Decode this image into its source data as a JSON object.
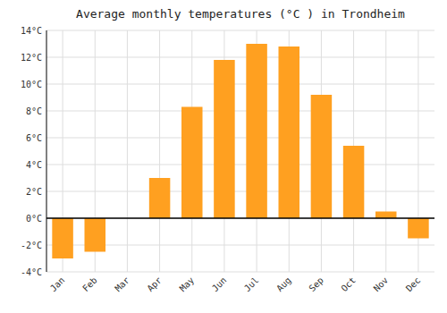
{
  "chart_data": {
    "type": "bar",
    "title": "Average monthly temperatures (°C ) in Trondheim",
    "categories": [
      "Jan",
      "Feb",
      "Mar",
      "Apr",
      "May",
      "Jun",
      "Jul",
      "Aug",
      "Sep",
      "Oct",
      "Nov",
      "Dec"
    ],
    "values": [
      -3.0,
      -2.5,
      0.0,
      3.0,
      8.3,
      11.8,
      13.0,
      12.8,
      9.2,
      5.4,
      0.5,
      -1.5
    ],
    "color": "#FFA020",
    "ylim": [
      -4,
      14
    ],
    "yticks": [
      {
        "value": -4,
        "label": "-4°C"
      },
      {
        "value": -2,
        "label": "-2°C"
      },
      {
        "value": 0,
        "label": "0°C"
      },
      {
        "value": 2,
        "label": "2°C"
      },
      {
        "value": 4,
        "label": "4°C"
      },
      {
        "value": 6,
        "label": "6°C"
      },
      {
        "value": 8,
        "label": "8°C"
      },
      {
        "value": 10,
        "label": "10°C"
      },
      {
        "value": 12,
        "label": "12°C"
      },
      {
        "value": 14,
        "label": "14°C"
      }
    ],
    "grid": true
  }
}
